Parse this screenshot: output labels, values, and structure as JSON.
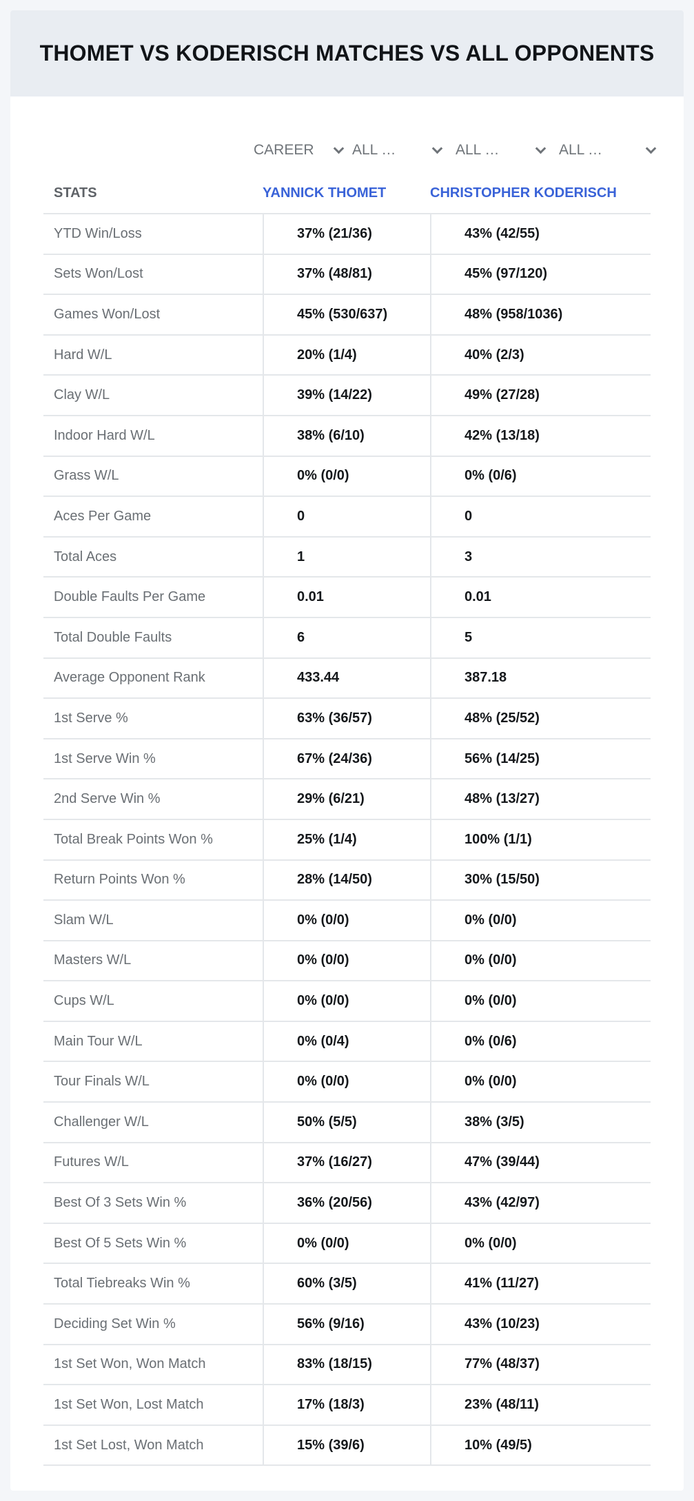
{
  "header": {
    "title": "THOMET VS KODERISCH MATCHES VS ALL OPPONENTS"
  },
  "filters": {
    "period": "CAREER",
    "round": "ALL ROUNDS",
    "surface": "ALL SURFACES",
    "tournament": "ALL TOURNAMENTS"
  },
  "table": {
    "headers": {
      "stats": "STATS",
      "player1": "YANNICK THOMET",
      "player2": "CHRISTOPHER KODERISCH"
    },
    "rows": [
      {
        "label": "YTD Win/Loss",
        "p1": "37% (21/36)",
        "p2": "43% (42/55)"
      },
      {
        "label": "Sets Won/Lost",
        "p1": "37% (48/81)",
        "p2": "45% (97/120)"
      },
      {
        "label": "Games Won/Lost",
        "p1": "45% (530/637)",
        "p2": "48% (958/1036)"
      },
      {
        "label": "Hard W/L",
        "p1": "20% (1/4)",
        "p2": "40% (2/3)"
      },
      {
        "label": "Clay W/L",
        "p1": "39% (14/22)",
        "p2": "49% (27/28)"
      },
      {
        "label": "Indoor Hard W/L",
        "p1": "38% (6/10)",
        "p2": "42% (13/18)"
      },
      {
        "label": "Grass W/L",
        "p1": "0% (0/0)",
        "p2": "0% (0/6)"
      },
      {
        "label": "Aces Per Game",
        "p1": "0",
        "p2": "0"
      },
      {
        "label": "Total Aces",
        "p1": "1",
        "p2": "3"
      },
      {
        "label": "Double Faults Per Game",
        "p1": "0.01",
        "p2": "0.01"
      },
      {
        "label": "Total Double Faults",
        "p1": "6",
        "p2": "5"
      },
      {
        "label": "Average Opponent Rank",
        "p1": "433.44",
        "p2": "387.18"
      },
      {
        "label": "1st Serve %",
        "p1": "63% (36/57)",
        "p2": "48% (25/52)"
      },
      {
        "label": "1st Serve Win %",
        "p1": "67% (24/36)",
        "p2": "56% (14/25)"
      },
      {
        "label": "2nd Serve Win %",
        "p1": "29% (6/21)",
        "p2": "48% (13/27)"
      },
      {
        "label": "Total Break Points Won %",
        "p1": "25% (1/4)",
        "p2": "100% (1/1)"
      },
      {
        "label": "Return Points Won %",
        "p1": "28% (14/50)",
        "p2": "30% (15/50)"
      },
      {
        "label": "Slam W/L",
        "p1": "0% (0/0)",
        "p2": "0% (0/0)"
      },
      {
        "label": "Masters W/L",
        "p1": "0% (0/0)",
        "p2": "0% (0/0)"
      },
      {
        "label": "Cups W/L",
        "p1": "0% (0/0)",
        "p2": "0% (0/0)"
      },
      {
        "label": "Main Tour W/L",
        "p1": "0% (0/4)",
        "p2": "0% (0/6)"
      },
      {
        "label": "Tour Finals W/L",
        "p1": "0% (0/0)",
        "p2": "0% (0/0)"
      },
      {
        "label": "Challenger W/L",
        "p1": "50% (5/5)",
        "p2": "38% (3/5)"
      },
      {
        "label": "Futures W/L",
        "p1": "37% (16/27)",
        "p2": "47% (39/44)"
      },
      {
        "label": "Best Of 3 Sets Win %",
        "p1": "36% (20/56)",
        "p2": "43% (42/97)"
      },
      {
        "label": "Best Of 5 Sets Win %",
        "p1": "0% (0/0)",
        "p2": "0% (0/0)"
      },
      {
        "label": "Total Tiebreaks Win %",
        "p1": "60% (3/5)",
        "p2": "41% (11/27)"
      },
      {
        "label": "Deciding Set Win %",
        "p1": "56% (9/16)",
        "p2": "43% (10/23)"
      },
      {
        "label": "1st Set Won, Won Match",
        "p1": "83% (18/15)",
        "p2": "77% (48/37)"
      },
      {
        "label": "1st Set Won, Lost Match",
        "p1": "17% (18/3)",
        "p2": "23% (48/11)"
      },
      {
        "label": "1st Set Lost, Won Match",
        "p1": "15% (39/6)",
        "p2": "10% (49/5)"
      }
    ]
  }
}
